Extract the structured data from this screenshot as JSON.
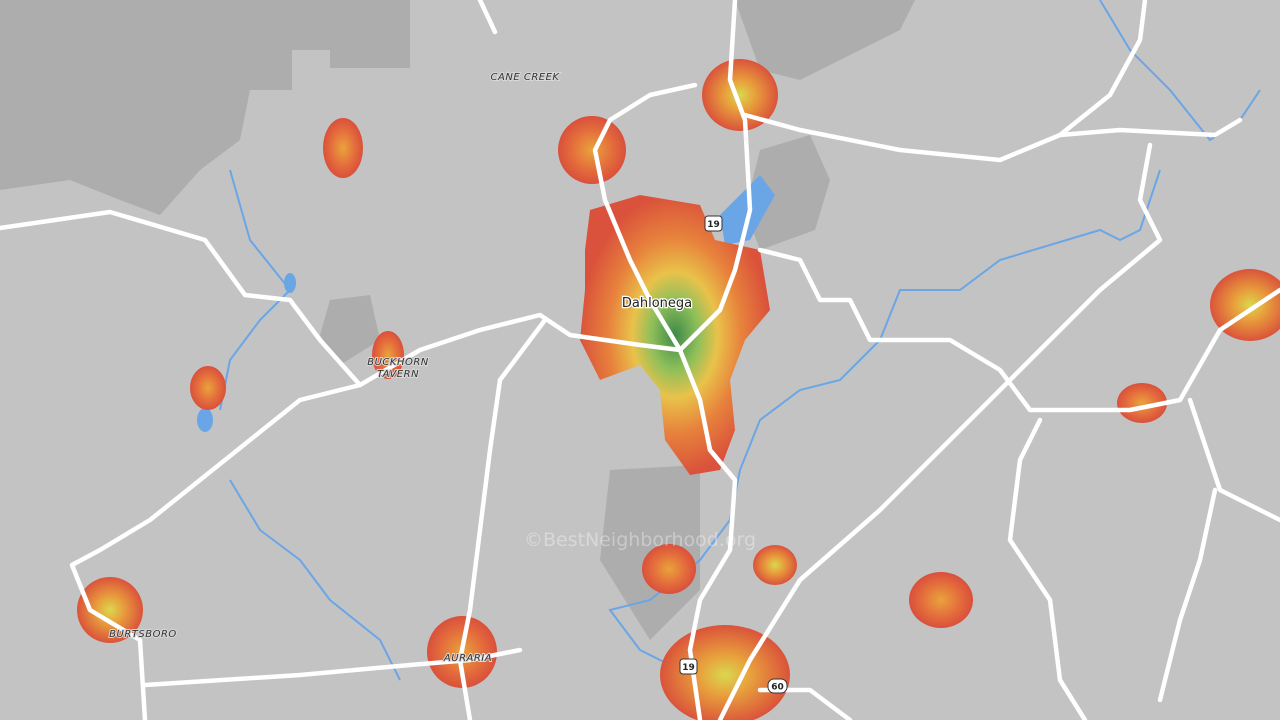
{
  "map": {
    "places": [
      {
        "label": "CANE CREEK"
      },
      {
        "label": "Dahlonega"
      },
      {
        "label": "BUCKHORN"
      },
      {
        "label": "TAVERN"
      },
      {
        "label": "BURTSBORO"
      },
      {
        "label": "AURARIA"
      }
    ],
    "shields": [
      "19",
      "19",
      "60"
    ],
    "watermark": "©BestNeighborhood.org"
  }
}
